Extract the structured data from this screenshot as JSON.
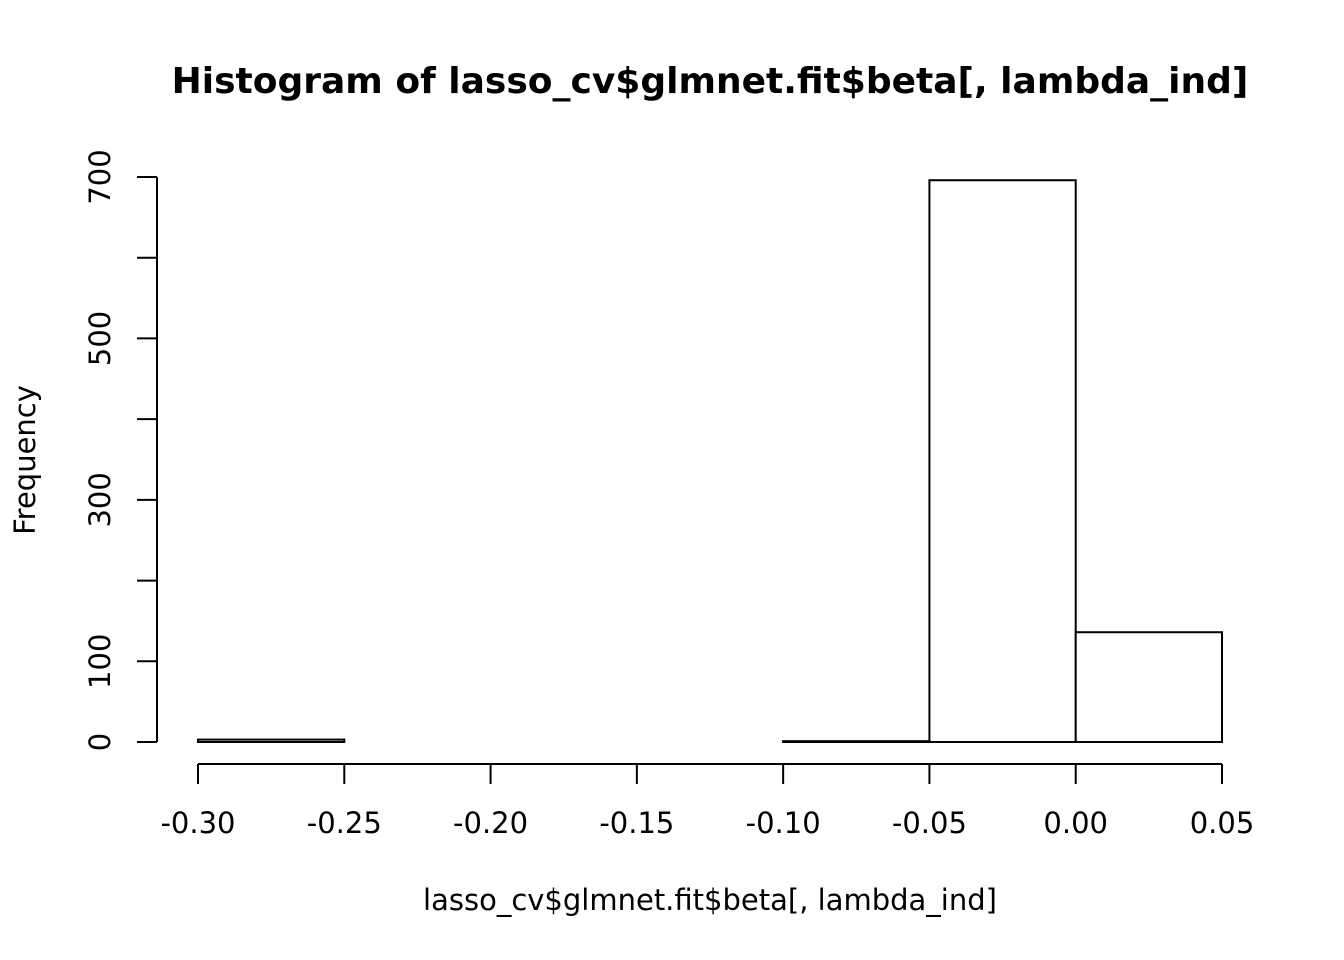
{
  "chart_data": {
    "type": "bar",
    "subtype": "histogram",
    "title": "Histogram of lasso_cv$glmnet.fit$beta[, lambda_ind]",
    "xlabel": "lasso_cv$glmnet.fit$beta[, lambda_ind]",
    "ylabel": "Frequency",
    "bins": [
      {
        "x0": -0.3,
        "x1": -0.25,
        "count": 3
      },
      {
        "x0": -0.25,
        "x1": -0.2,
        "count": 0
      },
      {
        "x0": -0.2,
        "x1": -0.15,
        "count": 0
      },
      {
        "x0": -0.15,
        "x1": -0.1,
        "count": 0
      },
      {
        "x0": -0.1,
        "x1": -0.05,
        "count": 1
      },
      {
        "x0": -0.05,
        "x1": 0.0,
        "count": 696
      },
      {
        "x0": 0.0,
        "x1": 0.05,
        "count": 136
      }
    ],
    "xlim": [
      -0.3,
      0.05
    ],
    "ylim": [
      0,
      700
    ],
    "x_ticks": [
      -0.3,
      -0.25,
      -0.2,
      -0.15,
      -0.1,
      -0.05,
      0.0,
      0.05
    ],
    "x_tick_labels": [
      "-0.30",
      "-0.25",
      "-0.20",
      "-0.15",
      "-0.10",
      "-0.05",
      "0.00",
      "0.05"
    ],
    "y_ticks": [
      0,
      100,
      200,
      300,
      400,
      500,
      600,
      700
    ],
    "y_tick_labels": [
      "0",
      "100",
      "",
      "300",
      "",
      "500",
      "",
      "700"
    ],
    "grid": false,
    "bar_fill": "#ffffff",
    "bar_stroke": "#000000"
  }
}
